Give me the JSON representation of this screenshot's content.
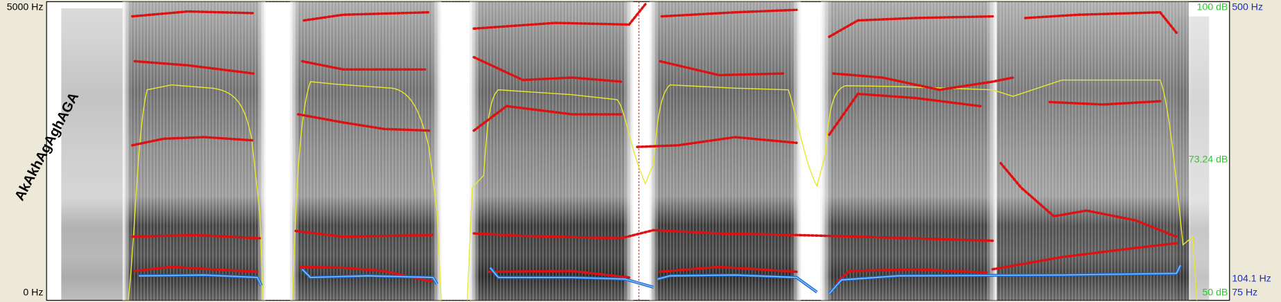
{
  "frequency_axis": {
    "top": "5000 Hz",
    "bottom": "0 Hz"
  },
  "annotation": "AkAkhAgAghAGA",
  "intensity_axis": {
    "top": "100 dB",
    "mid": "73.24 dB",
    "bottom": "50 dB"
  },
  "pitch_axis": {
    "top": "500 Hz",
    "mid": "104.1 Hz",
    "bottom": "75 Hz"
  }
}
